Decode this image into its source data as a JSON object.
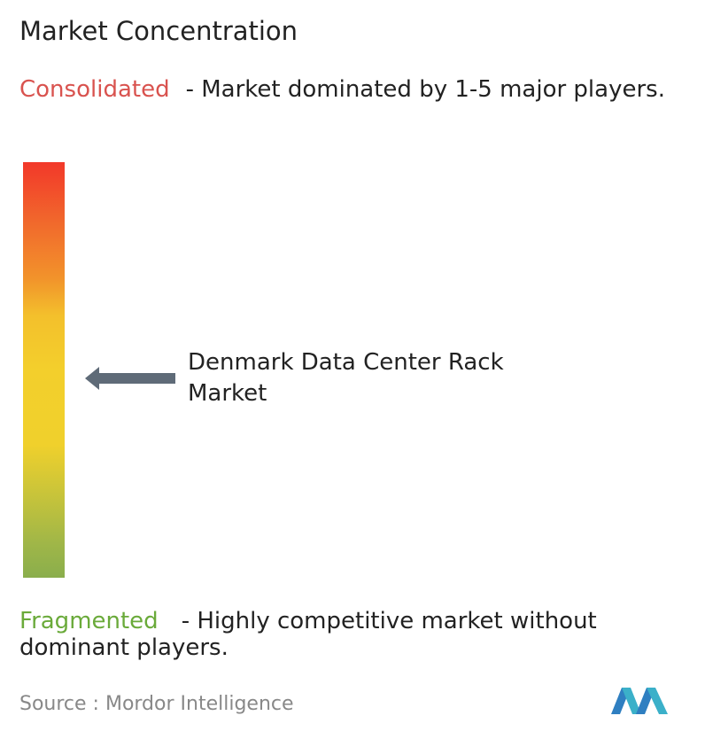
{
  "title": "Market Concentration",
  "consolidated": {
    "label": "Consolidated",
    "description": "- Market dominated by 1-5 major players."
  },
  "marker": {
    "label": "Denmark Data Center Rack Market"
  },
  "fragmented": {
    "label": "Fragmented",
    "description": "- Highly competitive market without dominant players."
  },
  "source": "Source : Mordor Intelligence"
}
